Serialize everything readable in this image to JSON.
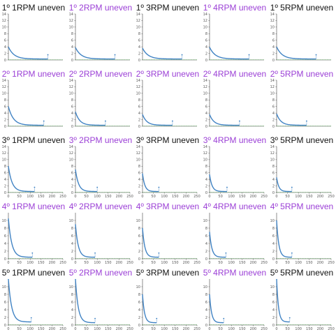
{
  "colors": {
    "purple": "#9b3fd6",
    "black": "#111111",
    "line": "#3f82c3",
    "baseline": "#5cb85c",
    "axis": "#444444"
  },
  "chart_data": [
    {
      "type": "line",
      "title": "1º 1RPM uneven",
      "title_color": "black",
      "xlim": [
        0,
        200
      ],
      "ylim": [
        0,
        14
      ],
      "yticks": [
        0,
        2,
        4,
        6,
        8,
        10,
        12,
        14
      ],
      "xticks": [],
      "peak": 4.0,
      "x_end": 145,
      "marker_x": 145,
      "marker_y": 0.3
    },
    {
      "type": "line",
      "title": "1º 2RPM uneven",
      "title_color": "purple",
      "xlim": [
        0,
        200
      ],
      "ylim": [
        0,
        14
      ],
      "yticks": [
        0,
        2,
        4,
        6,
        8,
        10,
        12,
        14
      ],
      "xticks": [],
      "peak": 3.8,
      "x_end": 145,
      "marker_x": 145,
      "marker_y": 0.3
    },
    {
      "type": "line",
      "title": "1º 3RPM uneven",
      "title_color": "black",
      "xlim": [
        0,
        200
      ],
      "ylim": [
        0,
        14
      ],
      "yticks": [
        0,
        2,
        4,
        6,
        8,
        10,
        12,
        14
      ],
      "xticks": [],
      "peak": 3.6,
      "x_end": 145,
      "marker_x": 145,
      "marker_y": 0.3
    },
    {
      "type": "line",
      "title": "1º 4RPM uneven",
      "title_color": "purple",
      "xlim": [
        0,
        200
      ],
      "ylim": [
        0,
        14
      ],
      "yticks": [
        0,
        2,
        4,
        6,
        8,
        10,
        12,
        14
      ],
      "xticks": [],
      "peak": 3.9,
      "x_end": 145,
      "marker_x": 145,
      "marker_y": 0.3
    },
    {
      "type": "line",
      "title": "1º 5RPM uneven",
      "title_color": "black",
      "xlim": [
        0,
        200
      ],
      "ylim": [
        0,
        14
      ],
      "yticks": [
        0,
        2,
        4,
        6,
        8,
        10,
        12,
        14
      ],
      "xticks": [],
      "peak": 4.0,
      "x_end": 145,
      "marker_x": 145,
      "marker_y": 0.3
    },
    {
      "type": "line",
      "title": "2º 1RPM uneven",
      "title_color": "purple",
      "xlim": [
        0,
        200
      ],
      "ylim": [
        0,
        14
      ],
      "yticks": [
        0,
        2,
        4,
        6,
        8,
        10,
        12,
        14
      ],
      "xticks": [],
      "peak": 6.0,
      "x_end": 130,
      "marker_x": 130,
      "marker_y": 0.3
    },
    {
      "type": "line",
      "title": "2º 2RPM uneven",
      "title_color": "purple",
      "xlim": [
        0,
        200
      ],
      "ylim": [
        0,
        14
      ],
      "yticks": [
        0,
        2,
        4,
        6,
        8,
        10,
        12,
        14
      ],
      "xticks": [],
      "peak": 4.4,
      "x_end": 110,
      "marker_x": 110,
      "marker_y": 0.3
    },
    {
      "type": "line",
      "title": "2º 3RPM uneven",
      "title_color": "purple",
      "xlim": [
        0,
        200
      ],
      "ylim": [
        0,
        14
      ],
      "yticks": [
        0,
        2,
        4,
        6,
        8,
        10,
        12,
        14
      ],
      "xticks": [],
      "peak": 3.6,
      "x_end": 110,
      "marker_x": 110,
      "marker_y": 0.3
    },
    {
      "type": "line",
      "title": "2º 4RPM uneven",
      "title_color": "purple",
      "xlim": [
        0,
        200
      ],
      "ylim": [
        0,
        14
      ],
      "yticks": [
        0,
        2,
        4,
        6,
        8,
        10,
        12,
        14
      ],
      "xticks": [],
      "peak": 3.6,
      "x_end": 110,
      "marker_x": 110,
      "marker_y": 0.3
    },
    {
      "type": "line",
      "title": "2º 5RPM uneven",
      "title_color": "purple",
      "xlim": [
        0,
        200
      ],
      "ylim": [
        0,
        14
      ],
      "yticks": [
        0,
        2,
        4,
        6,
        8,
        10,
        12,
        14
      ],
      "xticks": [],
      "peak": 3.8,
      "x_end": 110,
      "marker_x": 110,
      "marker_y": 0.3
    },
    {
      "type": "line",
      "title": "3º 1RPM uneven",
      "title_color": "black",
      "xlim": [
        0,
        250
      ],
      "ylim": [
        0,
        14
      ],
      "yticks": [
        0,
        2,
        4,
        6,
        8,
        10,
        12,
        14
      ],
      "xticks": [
        0,
        50,
        100,
        150,
        200,
        250
      ],
      "peak": 8.0,
      "x_end": 120,
      "marker_x": 120,
      "marker_y": 0.3
    },
    {
      "type": "line",
      "title": "3º 2RPM uneven",
      "title_color": "purple",
      "xlim": [
        0,
        250
      ],
      "ylim": [
        0,
        14
      ],
      "yticks": [
        0,
        2,
        4,
        6,
        8,
        10,
        12,
        14
      ],
      "xticks": [
        0,
        50,
        100,
        150,
        200,
        250
      ],
      "peak": 7.0,
      "x_end": 100,
      "marker_x": 100,
      "marker_y": 0.3
    },
    {
      "type": "line",
      "title": "3º 3RPM uneven",
      "title_color": "black",
      "xlim": [
        0,
        250
      ],
      "ylim": [
        0,
        14
      ],
      "yticks": [
        0,
        2,
        4,
        6,
        8,
        10,
        12,
        14
      ],
      "xticks": [
        0,
        50,
        100,
        150,
        200,
        250
      ],
      "peak": 5.8,
      "x_end": 75,
      "marker_x": 75,
      "marker_y": 0.3
    },
    {
      "type": "line",
      "title": "3º 4RPM uneven",
      "title_color": "purple",
      "xlim": [
        0,
        250
      ],
      "ylim": [
        0,
        14
      ],
      "yticks": [
        0,
        2,
        4,
        6,
        8,
        10,
        12,
        14
      ],
      "xticks": [
        0,
        50,
        100,
        150,
        200,
        250
      ],
      "peak": 5.5,
      "x_end": 80,
      "marker_x": 80,
      "marker_y": 0.3
    },
    {
      "type": "line",
      "title": "3º 5RPM uneven",
      "title_color": "black",
      "xlim": [
        0,
        250
      ],
      "ylim": [
        0,
        14
      ],
      "yticks": [
        0,
        2,
        4,
        6,
        8,
        10,
        12,
        14
      ],
      "xticks": [
        0,
        50,
        100,
        150,
        200,
        250
      ],
      "peak": 4.6,
      "x_end": 70,
      "marker_x": 70,
      "marker_y": 0.3
    },
    {
      "type": "line",
      "title": "4º 1RPM uneven",
      "title_color": "purple",
      "xlim": [
        0,
        250
      ],
      "ylim": [
        0,
        12
      ],
      "yticks": [
        0,
        2,
        4,
        6,
        8,
        10
      ],
      "xticks": [
        0,
        50,
        100,
        150,
        200,
        250
      ],
      "peak": 10.5,
      "x_end": 110,
      "marker_x": 110,
      "marker_y": 0.4
    },
    {
      "type": "line",
      "title": "4º 2RPM uneven",
      "title_color": "purple",
      "xlim": [
        0,
        250
      ],
      "ylim": [
        0,
        12
      ],
      "yticks": [
        0,
        2,
        4,
        6,
        8,
        10
      ],
      "xticks": [
        0,
        50,
        100,
        150,
        200,
        250
      ],
      "peak": 9.0,
      "x_end": 90,
      "marker_x": 90,
      "marker_y": 0.4
    },
    {
      "type": "line",
      "title": "4º 3RPM uneven",
      "title_color": "purple",
      "xlim": [
        0,
        250
      ],
      "ylim": [
        0,
        12
      ],
      "yticks": [
        0,
        2,
        4,
        6,
        8,
        10
      ],
      "xticks": [
        0,
        50,
        100,
        150,
        200,
        250
      ],
      "peak": 8.0,
      "x_end": 75,
      "marker_x": 75,
      "marker_y": 0.4
    },
    {
      "type": "line",
      "title": "4º 4RPM uneven",
      "title_color": "purple",
      "xlim": [
        0,
        250
      ],
      "ylim": [
        0,
        12
      ],
      "yticks": [
        0,
        2,
        4,
        6,
        8,
        10
      ],
      "xticks": [
        0,
        50,
        100,
        150,
        200,
        250
      ],
      "peak": 7.0,
      "x_end": 75,
      "marker_x": 75,
      "marker_y": 0.4
    },
    {
      "type": "line",
      "title": "4º 5RPM uneven",
      "title_color": "purple",
      "xlim": [
        0,
        250
      ],
      "ylim": [
        0,
        12
      ],
      "yticks": [
        0,
        2,
        4,
        6,
        8,
        10
      ],
      "xticks": [
        0,
        50,
        100,
        150,
        200,
        250
      ],
      "peak": 10.0,
      "x_end": 70,
      "marker_x": 70,
      "marker_y": 0.4
    },
    {
      "type": "line",
      "title": "5º 1RPM uneven",
      "title_color": "black",
      "xlim": [
        0,
        250
      ],
      "ylim": [
        0,
        12
      ],
      "yticks": [
        0,
        2,
        4,
        6,
        8,
        10
      ],
      "xticks": [
        0,
        50,
        100,
        150,
        200,
        250
      ],
      "peak": 12.0,
      "x_end": 105,
      "marker_x": 105,
      "marker_y": 0.8
    },
    {
      "type": "line",
      "title": "5º 2RPM uneven",
      "title_color": "purple",
      "xlim": [
        0,
        250
      ],
      "ylim": [
        0,
        12
      ],
      "yticks": [
        0,
        2,
        4,
        6,
        8,
        10
      ],
      "xticks": [
        0,
        50,
        100,
        150,
        200,
        250
      ],
      "peak": 12.0,
      "x_end": 90,
      "marker_x": 90,
      "marker_y": 0.6
    },
    {
      "type": "line",
      "title": "5º 3RPM uneven",
      "title_color": "black",
      "xlim": [
        0,
        250
      ],
      "ylim": [
        0,
        12
      ],
      "yticks": [
        0,
        2,
        4,
        6,
        8,
        10
      ],
      "xticks": [
        0,
        50,
        100,
        150,
        200,
        250
      ],
      "peak": 8.0,
      "x_end": 65,
      "marker_x": 65,
      "marker_y": 0.6
    },
    {
      "type": "line",
      "title": "5º 4RPM uneven",
      "title_color": "purple",
      "xlim": [
        0,
        250
      ],
      "ylim": [
        0,
        12
      ],
      "yticks": [
        0,
        2,
        4,
        6,
        8,
        10
      ],
      "xticks": [
        0,
        50,
        100,
        150,
        200,
        250
      ],
      "peak": 8.0,
      "x_end": 65,
      "marker_x": 65,
      "marker_y": 0.6
    },
    {
      "type": "line",
      "title": "5º 5RPM uneven",
      "title_color": "black",
      "xlim": [
        0,
        250
      ],
      "ylim": [
        0,
        12
      ],
      "yticks": [
        0,
        2,
        4,
        6,
        8,
        10
      ],
      "xticks": [
        0,
        50,
        100,
        150,
        200,
        250
      ],
      "peak": 12.0,
      "x_end": 60,
      "marker_x": 60,
      "marker_y": 0.8
    }
  ]
}
